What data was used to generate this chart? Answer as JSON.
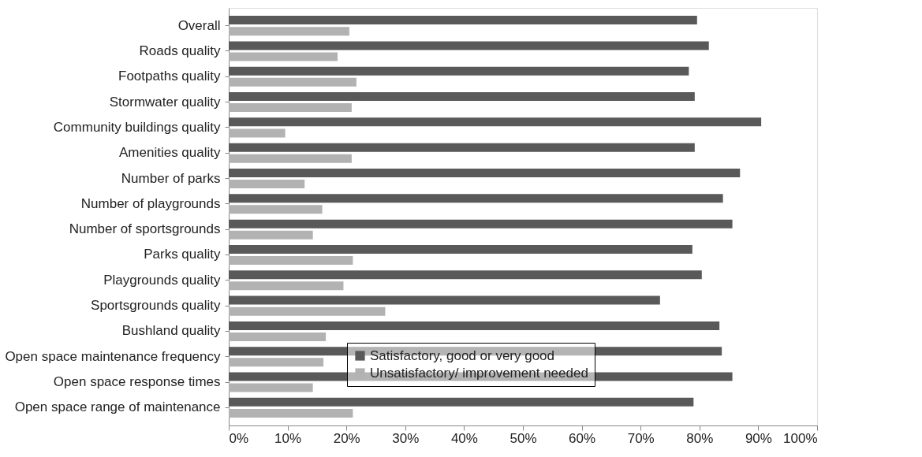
{
  "chart_data": {
    "type": "bar",
    "orientation": "horizontal",
    "categories": [
      "Overall",
      "Roads quality",
      "Footpaths quality",
      "Stormwater quality",
      "Community buildings quality",
      "Amenities quality",
      "Number of parks",
      "Number of playgrounds",
      "Number of sportsgrounds",
      "Parks quality",
      "Playgrounds quality",
      "Sportsgrounds quality",
      "Bushland quality",
      "Open space maintenance frequency",
      "Open space response times",
      "Open space range of maintenance"
    ],
    "series": [
      {
        "name": "Satisfactory, good or very good",
        "color": "#595959",
        "values": [
          79.6,
          81.6,
          78.2,
          79.2,
          90.5,
          79.2,
          86.9,
          84.0,
          85.6,
          78.8,
          80.4,
          73.3,
          83.4,
          83.8,
          85.6,
          79.0
        ]
      },
      {
        "name": "Unsatisfactory/ improvement needed",
        "color": "#b2b2b2",
        "values": [
          20.5,
          18.5,
          21.7,
          20.9,
          9.6,
          20.9,
          12.9,
          15.9,
          14.3,
          21.1,
          19.5,
          26.6,
          16.5,
          16.1,
          14.3,
          21.1
        ]
      }
    ],
    "xlim": [
      0,
      100
    ],
    "xticks": [
      {
        "value": 0,
        "label": "0%"
      },
      {
        "value": 10,
        "label": "10%"
      },
      {
        "value": 20,
        "label": "20%"
      },
      {
        "value": 30,
        "label": "30%"
      },
      {
        "value": 40,
        "label": "40%"
      },
      {
        "value": 50,
        "label": "50%"
      },
      {
        "value": 60,
        "label": "60%"
      },
      {
        "value": 70,
        "label": "70%"
      },
      {
        "value": 80,
        "label": "80%"
      },
      {
        "value": 90,
        "label": "90%"
      },
      {
        "value": 100,
        "label": "100%"
      }
    ],
    "grid": false,
    "legend": "bottom"
  }
}
